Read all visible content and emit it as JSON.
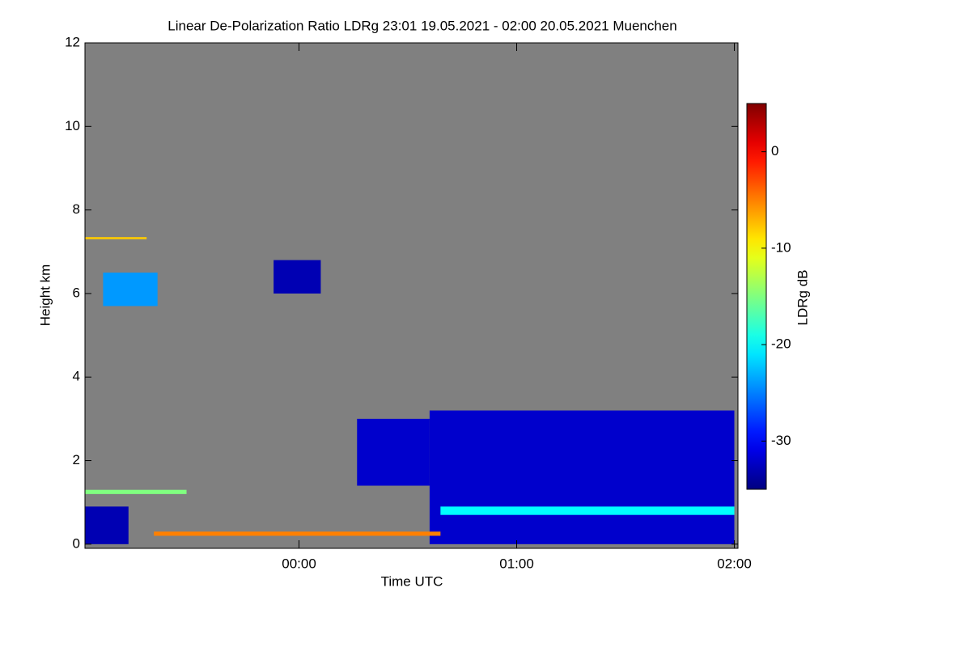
{
  "chart_data": {
    "type": "heatmap",
    "title": "Linear De-Polarization Ratio LDRg   23:01 19.05.2021 - 02:00 20.05.2021 Muenchen",
    "x_label": "Time UTC",
    "y_label": "Height km",
    "colorbar_label": "LDRg dB",
    "colormap": "jet",
    "background": "#808080",
    "xlim": [
      -59,
      121
    ],
    "xticks": [
      {
        "value": 0,
        "label": "00:00"
      },
      {
        "value": 60,
        "label": "01:00"
      },
      {
        "value": 120,
        "label": "02:00"
      }
    ],
    "ylim": [
      -0.1,
      12
    ],
    "yticks": [
      0,
      2,
      4,
      6,
      8,
      10,
      12
    ],
    "clim": [
      -35,
      5
    ],
    "cticks": [
      -30,
      -20,
      -10,
      0
    ],
    "patches": [
      {
        "x": [
          -59,
          -47
        ],
        "y": [
          0,
          0.9
        ],
        "value": -33
      },
      {
        "x": [
          36,
          120
        ],
        "y": [
          0,
          3.2
        ],
        "value": -32
      },
      {
        "x": [
          16,
          36
        ],
        "y": [
          1.4,
          3.0
        ],
        "value": -32
      },
      {
        "x": [
          39,
          120
        ],
        "y": [
          0.7,
          0.9
        ],
        "value": -20
      },
      {
        "x": [
          -54,
          -39
        ],
        "y": [
          5.7,
          6.5
        ],
        "value": -24
      },
      {
        "x": [
          -7,
          6
        ],
        "y": [
          6.0,
          6.8
        ],
        "value": -33
      },
      {
        "x": [
          -40,
          39
        ],
        "y": [
          0.2,
          0.3
        ],
        "value": -5
      },
      {
        "x": [
          -59,
          -31
        ],
        "y": [
          1.2,
          1.3
        ],
        "value": -15
      },
      {
        "x": [
          -59,
          -42
        ],
        "y": [
          7.3,
          7.35
        ],
        "value": -8
      }
    ]
  }
}
